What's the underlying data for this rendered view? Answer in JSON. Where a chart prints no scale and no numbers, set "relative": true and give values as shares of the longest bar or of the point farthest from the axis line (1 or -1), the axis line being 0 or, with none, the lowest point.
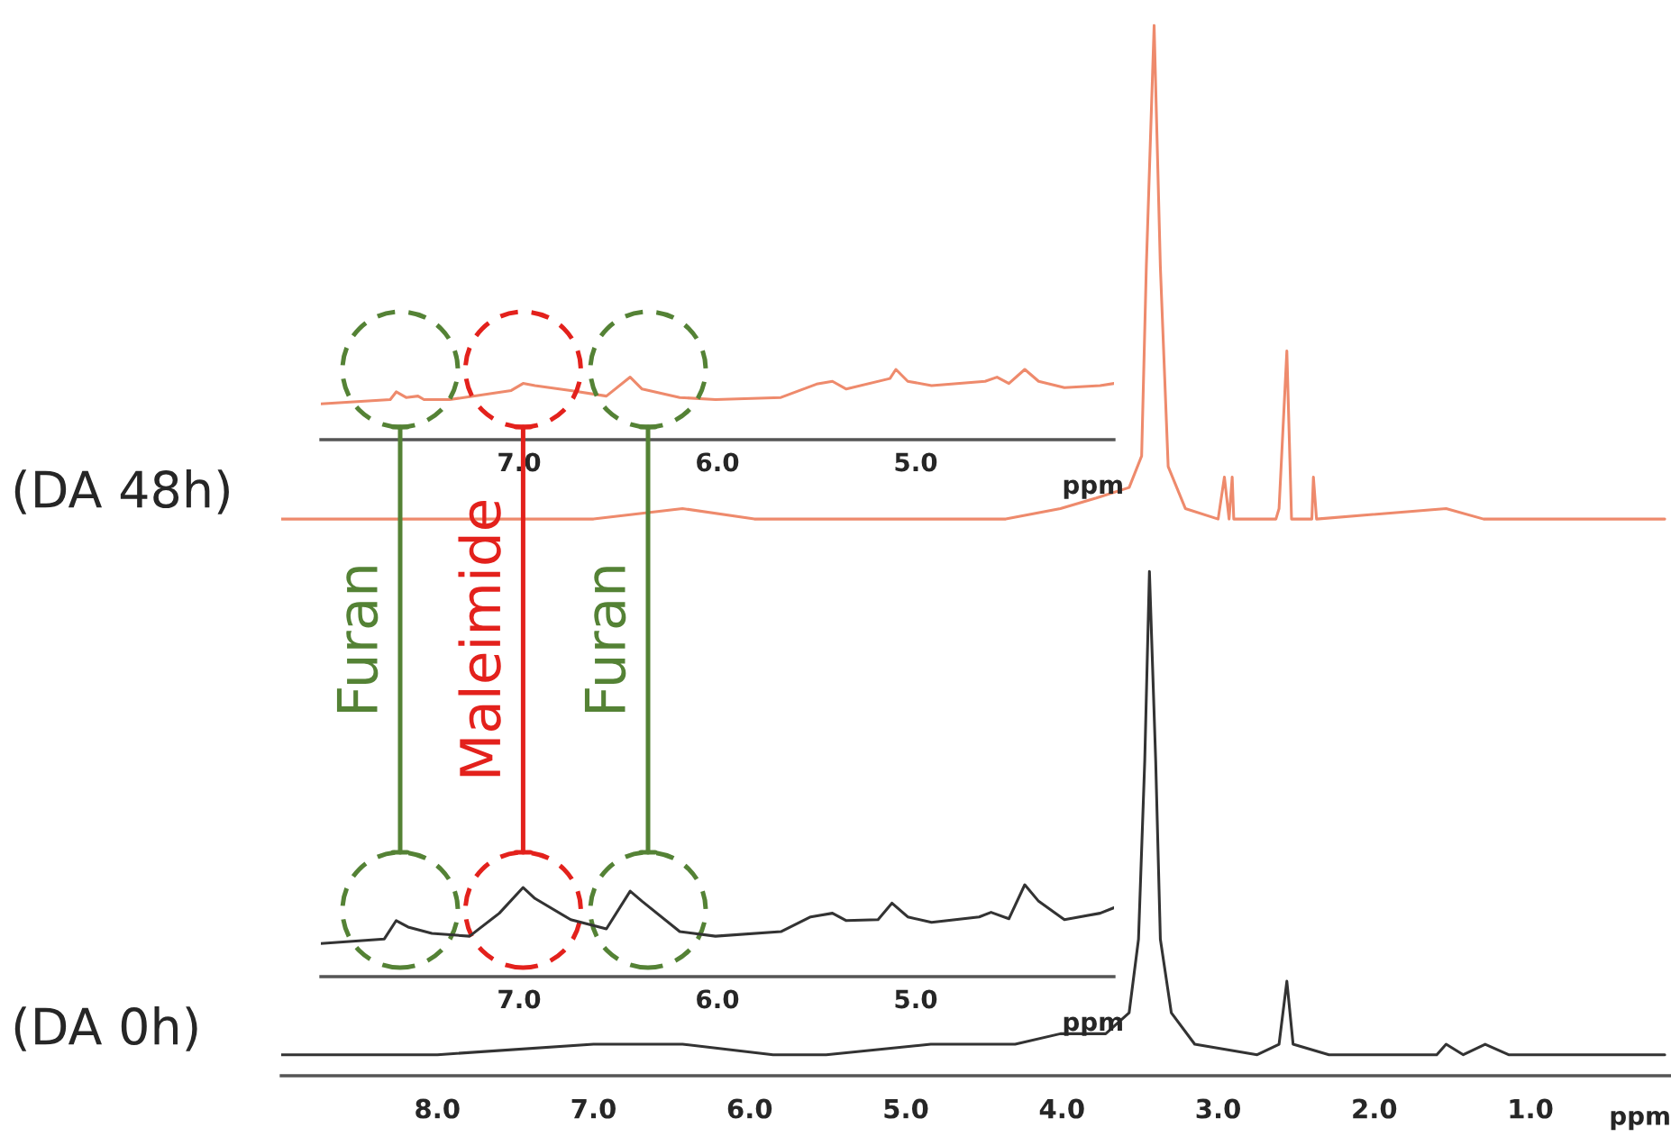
{
  "chart_data": [
    {
      "type": "line",
      "relative": true,
      "xlim": [
        9.0,
        0.1
      ],
      "xlabel": "ppm",
      "xticks": [
        {
          "value": 8.0,
          "label": "8.0"
        },
        {
          "value": 7.0,
          "label": "7.0"
        },
        {
          "value": 6.0,
          "label": "6.0"
        },
        {
          "value": 5.0,
          "label": "5.0"
        },
        {
          "value": 4.0,
          "label": "4.0"
        },
        {
          "value": 3.0,
          "label": "3.0"
        },
        {
          "value": 2.0,
          "label": "2.0"
        },
        {
          "value": 1.0,
          "label": "1.0"
        }
      ],
      "series": [
        {
          "name": "(DA 48h)",
          "color": "#ee8a6c",
          "x": [
            9.0,
            8.03,
            7.0,
            6.43,
            5.97,
            5.05,
            4.36,
            4.01,
            3.78,
            3.57,
            3.49,
            3.46,
            3.41,
            3.37,
            3.32,
            3.21,
            3.0,
            2.96,
            2.93,
            2.91,
            2.9,
            2.63,
            2.61,
            2.56,
            2.53,
            2.4,
            2.39,
            2.37,
            1.54,
            1.3,
            0.91,
            0.14
          ],
          "values": [
            0.53,
            0.53,
            0.53,
            0.54,
            0.53,
            0.53,
            0.53,
            0.54,
            0.55,
            0.56,
            0.59,
            0.77,
            1,
            0.77,
            0.58,
            0.54,
            0.53,
            0.57,
            0.53,
            0.57,
            0.53,
            0.53,
            0.54,
            0.69,
            0.53,
            0.53,
            0.57,
            0.53,
            0.54,
            0.53,
            0.53,
            0.53
          ]
        },
        {
          "name": "(DA 0h)",
          "color": "#333333",
          "x": [
            9.0,
            8.0,
            7.0,
            6.43,
            5.85,
            5.51,
            4.84,
            4.3,
            4.01,
            3.72,
            3.57,
            3.51,
            3.47,
            3.44,
            3.4,
            3.37,
            3.3,
            3.15,
            2.75,
            2.61,
            2.56,
            2.52,
            2.29,
            1.6,
            1.54,
            1.43,
            1.29,
            1.14,
            0.14
          ],
          "values": [
            0.02,
            0.02,
            0.03,
            0.03,
            0.02,
            0.02,
            0.03,
            0.03,
            0.04,
            0.04,
            0.06,
            0.13,
            0.3,
            0.48,
            0.3,
            0.13,
            0.06,
            0.03,
            0.02,
            0.03,
            0.09,
            0.03,
            0.02,
            0.02,
            0.03,
            0.02,
            0.03,
            0.02,
            0.02
          ]
        }
      ]
    },
    {
      "type": "line",
      "relative": true,
      "xlim": [
        8.0,
        4.0
      ],
      "xlabel": "ppm",
      "xticks": [
        {
          "value": 7.0,
          "label": "7.0"
        },
        {
          "value": 6.0,
          "label": "6.0"
        },
        {
          "value": 5.0,
          "label": "5.0"
        }
      ],
      "series": [
        {
          "color": "#ee8a6c",
          "x": [
            8.0,
            7.65,
            7.62,
            7.57,
            7.51,
            7.48,
            7.35,
            7.04,
            6.98,
            6.92,
            6.74,
            6.56,
            6.44,
            6.38,
            6.19,
            6.01,
            5.68,
            5.5,
            5.42,
            5.35,
            5.13,
            5.1,
            5.04,
            4.92,
            4.65,
            4.59,
            4.53,
            4.45,
            4.38,
            4.25,
            4.07,
            4.0
          ],
          "values": [
            0.51,
            0.57,
            0.68,
            0.6,
            0.62,
            0.57,
            0.57,
            0.7,
            0.8,
            0.77,
            0.7,
            0.62,
            0.89,
            0.72,
            0.6,
            0.57,
            0.6,
            0.79,
            0.83,
            0.72,
            0.87,
            1,
            0.83,
            0.77,
            0.83,
            0.89,
            0.8,
            1,
            0.83,
            0.74,
            0.77,
            0.8
          ]
        }
      ]
    },
    {
      "type": "line",
      "relative": true,
      "xlim": [
        8.0,
        4.0
      ],
      "xlabel": "ppm",
      "xticks": [
        {
          "value": 7.0,
          "label": "7.0"
        },
        {
          "value": 6.0,
          "label": "6.0"
        },
        {
          "value": 5.0,
          "label": "5.0"
        }
      ],
      "ref_lines": [
        {
          "axis": "x",
          "value": 7.6,
          "label": "Furan",
          "color": "#548235",
          "line_style": "solid"
        },
        {
          "axis": "x",
          "value": 6.98,
          "label": "Maleimide",
          "color": "#e3211c",
          "line_style": "solid"
        },
        {
          "axis": "x",
          "value": 6.35,
          "label": "Furan",
          "color": "#548235",
          "line_style": "solid"
        }
      ],
      "series": [
        {
          "color": "#333333",
          "x": [
            8.0,
            7.68,
            7.62,
            7.56,
            7.44,
            7.25,
            7.1,
            6.98,
            6.92,
            6.74,
            6.56,
            6.44,
            6.38,
            6.19,
            6.01,
            5.68,
            5.53,
            5.42,
            5.35,
            5.19,
            5.12,
            5.04,
            4.92,
            4.68,
            4.62,
            4.53,
            4.45,
            4.38,
            4.25,
            4.07,
            4.0
          ],
          "values": [
            0.36,
            0.41,
            0.61,
            0.54,
            0.47,
            0.44,
            0.69,
            0.97,
            0.85,
            0.62,
            0.52,
            0.93,
            0.82,
            0.49,
            0.44,
            0.49,
            0.65,
            0.69,
            0.61,
            0.62,
            0.8,
            0.65,
            0.59,
            0.65,
            0.7,
            0.63,
            1,
            0.82,
            0.62,
            0.69,
            0.75
          ]
        }
      ]
    }
  ]
}
